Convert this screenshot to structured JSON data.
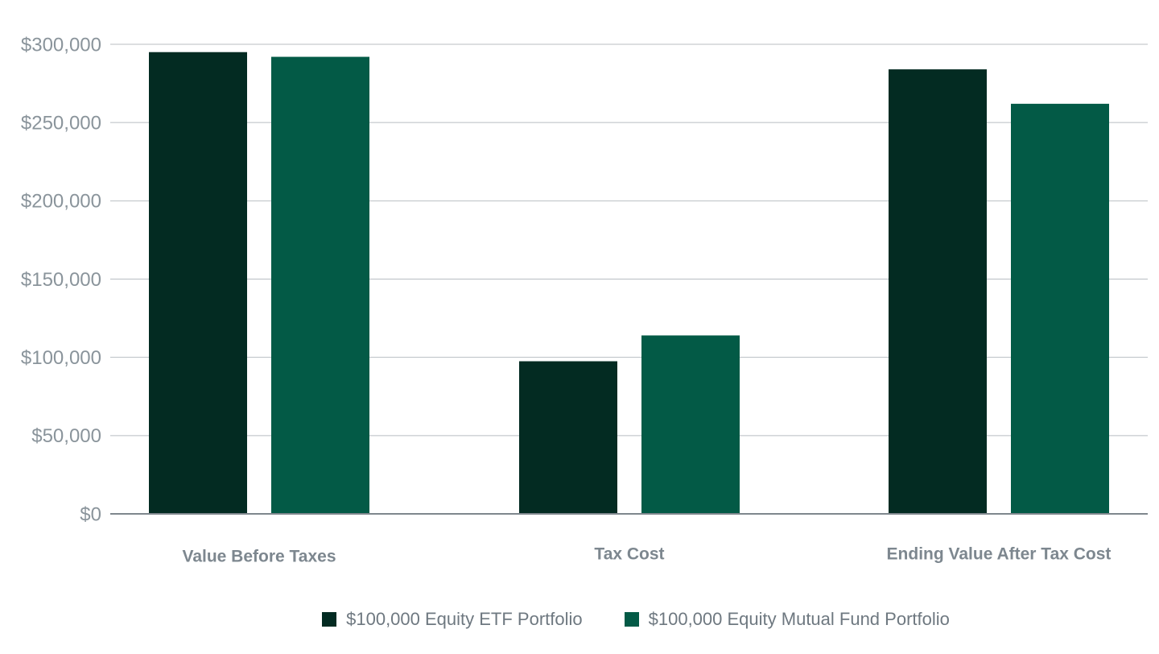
{
  "chart_data": {
    "type": "bar",
    "title": "",
    "xlabel": "",
    "ylabel": "",
    "categories": [
      "Value Before Taxes",
      "Tax Cost",
      "Ending Value After Tax Cost"
    ],
    "series": [
      {
        "name": "$100,000 Equity ETF Portfolio",
        "color": "#032b22",
        "values": [
          295000,
          97500,
          284000
        ]
      },
      {
        "name": "$100,000 Equity Mutual Fund Portfolio",
        "color": "#035a46",
        "values": [
          292000,
          114000,
          262000
        ]
      }
    ],
    "ylim": [
      0,
      300000
    ],
    "y_ticks": [
      0,
      50000,
      100000,
      150000,
      200000,
      250000,
      300000
    ],
    "y_tick_labels": [
      "$0",
      "$50,000",
      "$100,000",
      "$150,000",
      "$200,000",
      "$250,000",
      "$300,000"
    ],
    "grid": true,
    "legend_position": "bottom-center"
  }
}
